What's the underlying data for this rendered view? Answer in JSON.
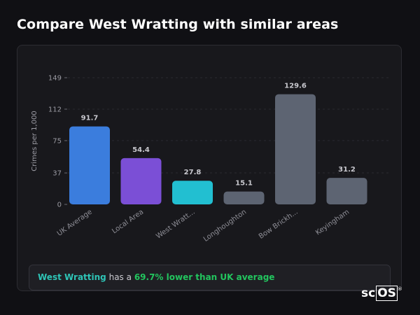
{
  "page_title": "Compare West Wratting with similar areas",
  "chart_data": {
    "type": "bar",
    "ylabel": "Crimes per 1,000",
    "ylim": [
      0,
      149
    ],
    "yticks": [
      0,
      37,
      75,
      112,
      149
    ],
    "categories": [
      "UK Average",
      "Local Area",
      "West Wratt...",
      "Longhoughton",
      "Bow Brickh...",
      "Keyingham"
    ],
    "values": [
      91.7,
      54.4,
      27.8,
      15.1,
      129.6,
      31.2
    ],
    "value_labels": [
      "91.7",
      "54.4",
      "27.8",
      "15.1",
      "129.6",
      "31.2"
    ],
    "colors": [
      "#3b7ddd",
      "#7b4fd6",
      "#22bfd1",
      "#5d6472",
      "#5d6472",
      "#5d6472"
    ],
    "grid": true
  },
  "summary": {
    "area_name": "West Wratting",
    "middle_text": "has a",
    "difference_text": "69.7% lower than UK average"
  },
  "brand": {
    "prefix": "sc",
    "boxed": "OS",
    "reg_mark": "®"
  }
}
